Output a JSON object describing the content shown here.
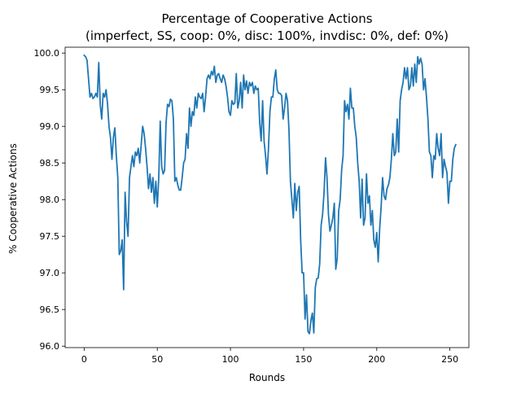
{
  "chart_data": {
    "type": "line",
    "title": "Percentage of Cooperative Actions",
    "subtitle": "(imperfect, SS, coop: 0%, disc: 100%, invdisc: 0%, def: 0%)",
    "xlabel": "Rounds",
    "ylabel": "% Cooperative Actions",
    "xlim": [
      -13,
      263
    ],
    "ylim": [
      95.98,
      100.08
    ],
    "xticks": [
      0,
      50,
      100,
      150,
      200,
      250
    ],
    "xtick_labels": [
      "0",
      "50",
      "100",
      "150",
      "200",
      "250"
    ],
    "yticks": [
      96.0,
      96.5,
      97.0,
      97.5,
      98.0,
      98.5,
      99.0,
      99.5,
      100.0
    ],
    "ytick_labels": [
      "96.0",
      "96.5",
      "97.0",
      "97.5",
      "98.0",
      "98.5",
      "99.0",
      "99.5",
      "100.0"
    ],
    "grid": false,
    "colors": {
      "series": "#1f77b4"
    },
    "series": [
      {
        "x_start": 0,
        "x_step": 1,
        "values": [
          99.97,
          99.95,
          99.9,
          99.65,
          99.4,
          99.45,
          99.38,
          99.4,
          99.45,
          99.4,
          99.87,
          99.3,
          99.1,
          99.45,
          99.4,
          99.5,
          99.3,
          99.0,
          98.85,
          98.55,
          98.85,
          98.98,
          98.6,
          98.3,
          97.25,
          97.3,
          97.45,
          96.77,
          98.1,
          97.7,
          97.5,
          98.3,
          98.45,
          98.6,
          98.45,
          98.65,
          98.6,
          98.7,
          98.5,
          98.75,
          99.0,
          98.9,
          98.7,
          98.45,
          98.15,
          98.35,
          98.1,
          98.3,
          97.95,
          98.25,
          97.9,
          98.3,
          99.07,
          98.45,
          98.35,
          98.4,
          99.05,
          99.3,
          99.27,
          99.37,
          99.35,
          99.1,
          98.25,
          98.3,
          98.2,
          98.13,
          98.13,
          98.3,
          98.5,
          98.55,
          98.9,
          98.7,
          99.25,
          99.0,
          99.2,
          99.15,
          99.4,
          99.25,
          99.45,
          99.4,
          99.38,
          99.45,
          99.2,
          99.4,
          99.65,
          99.7,
          99.65,
          99.75,
          99.7,
          99.82,
          99.6,
          99.7,
          99.72,
          99.65,
          99.6,
          99.7,
          99.65,
          99.55,
          99.4,
          99.2,
          99.15,
          99.35,
          99.3,
          99.32,
          99.72,
          99.25,
          99.35,
          99.6,
          99.25,
          99.7,
          99.5,
          99.62,
          99.45,
          99.6,
          99.55,
          99.6,
          99.45,
          99.55,
          99.5,
          99.52,
          99.05,
          98.8,
          99.35,
          98.8,
          98.6,
          98.35,
          98.7,
          99.2,
          99.4,
          99.4,
          99.65,
          99.77,
          99.5,
          99.45,
          99.45,
          99.42,
          99.1,
          99.25,
          99.45,
          99.35,
          98.95,
          98.25,
          98.0,
          97.75,
          98.22,
          97.85,
          98.1,
          98.18,
          97.45,
          97.0,
          97.0,
          96.37,
          96.7,
          96.2,
          96.17,
          96.35,
          96.45,
          96.18,
          96.8,
          96.92,
          96.93,
          97.12,
          97.65,
          97.8,
          98.1,
          98.57,
          98.3,
          97.8,
          97.57,
          97.65,
          97.75,
          97.95,
          97.05,
          97.2,
          97.85,
          98.0,
          98.4,
          98.6,
          99.35,
          99.2,
          99.3,
          99.1,
          99.52,
          99.25,
          99.25,
          99.0,
          98.85,
          98.5,
          98.25,
          97.75,
          98.28,
          97.65,
          97.75,
          98.35,
          97.95,
          98.05,
          97.65,
          97.85,
          97.45,
          97.35,
          97.55,
          97.15,
          97.6,
          97.9,
          98.3,
          98.05,
          98.0,
          98.15,
          98.2,
          98.3,
          98.55,
          98.9,
          98.6,
          98.65,
          99.1,
          98.65,
          99.35,
          99.5,
          99.6,
          99.8,
          99.65,
          99.8,
          99.5,
          99.55,
          99.8,
          99.55,
          99.85,
          99.6,
          99.95,
          99.85,
          99.93,
          99.85,
          99.5,
          99.65,
          99.4,
          99.1,
          98.65,
          98.6,
          98.3,
          98.6,
          98.55,
          98.9,
          98.7,
          98.6,
          98.9,
          98.3,
          98.55,
          98.45,
          98.37,
          97.95,
          98.25,
          98.25,
          98.55,
          98.7,
          98.75
        ]
      }
    ]
  }
}
